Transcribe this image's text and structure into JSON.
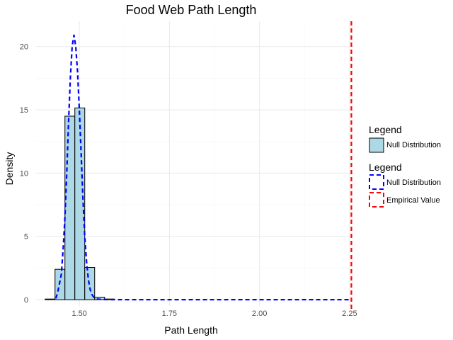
{
  "chart_data": {
    "type": "histogram",
    "title": "Food Web Path Length",
    "xlabel": "Path Length",
    "ylabel": "Density",
    "xlim": [
      1.378,
      2.262
    ],
    "ylim": [
      -0.5,
      22.0
    ],
    "x_ticks": [
      1.5,
      1.75,
      2.0,
      2.25
    ],
    "x_tick_labels": [
      "1.50",
      "1.75",
      "2.00",
      "2.25"
    ],
    "y_ticks": [
      0,
      5,
      10,
      15,
      20
    ],
    "y_tick_labels": [
      "0",
      "5",
      "10",
      "15",
      "20"
    ],
    "grid": true,
    "histogram": {
      "name": "Null Distribution",
      "fill": "#ADD8E6",
      "bin_width": 0.0275,
      "bins": [
        {
          "x0": 1.405,
          "x1": 1.4325,
          "density": 0.05
        },
        {
          "x0": 1.4325,
          "x1": 1.46,
          "density": 2.4
        },
        {
          "x0": 1.46,
          "x1": 1.4875,
          "density": 14.5
        },
        {
          "x0": 1.4875,
          "x1": 1.515,
          "density": 15.15
        },
        {
          "x0": 1.515,
          "x1": 1.5425,
          "density": 2.55
        },
        {
          "x0": 1.5425,
          "x1": 1.57,
          "density": 0.2
        },
        {
          "x0": 1.57,
          "x1": 1.5975,
          "density": 0.05
        }
      ]
    },
    "density_curve": {
      "name": "Null Distribution",
      "color": "#0000FF",
      "x": [
        1.435,
        1.44,
        1.45,
        1.455,
        1.46,
        1.465,
        1.47,
        1.475,
        1.48,
        1.485,
        1.49,
        1.495,
        1.5,
        1.505,
        1.51,
        1.515,
        1.52,
        1.525,
        1.53,
        1.535,
        1.54,
        1.545,
        1.55,
        1.56,
        1.57,
        1.6,
        1.7,
        1.8,
        1.9,
        2.0,
        2.1,
        2.2,
        2.25
      ],
      "y": [
        0.1,
        0.6,
        2.0,
        4.0,
        6.5,
        10.0,
        14.0,
        17.5,
        20.0,
        20.9,
        20.0,
        18.0,
        15.0,
        11.5,
        8.0,
        5.0,
        3.0,
        1.6,
        0.8,
        0.4,
        0.2,
        0.1,
        0.05,
        0.02,
        0.01,
        0.0,
        0.0,
        0.0,
        0.0,
        0.0,
        0.0,
        0.0,
        0.0
      ]
    },
    "empirical_value": {
      "name": "Empirical Value",
      "x": 2.255,
      "color": "#FF0000"
    },
    "legend": {
      "placement": "right",
      "groups": [
        {
          "title": "Legend",
          "entries": [
            {
              "label": "Null Distribution",
              "kind": "fill"
            }
          ]
        },
        {
          "title": "Legend",
          "entries": [
            {
              "label": "Null Distribution",
              "kind": "blue-dash"
            },
            {
              "label": "Empirical Value",
              "kind": "red-dash"
            }
          ]
        }
      ]
    }
  }
}
